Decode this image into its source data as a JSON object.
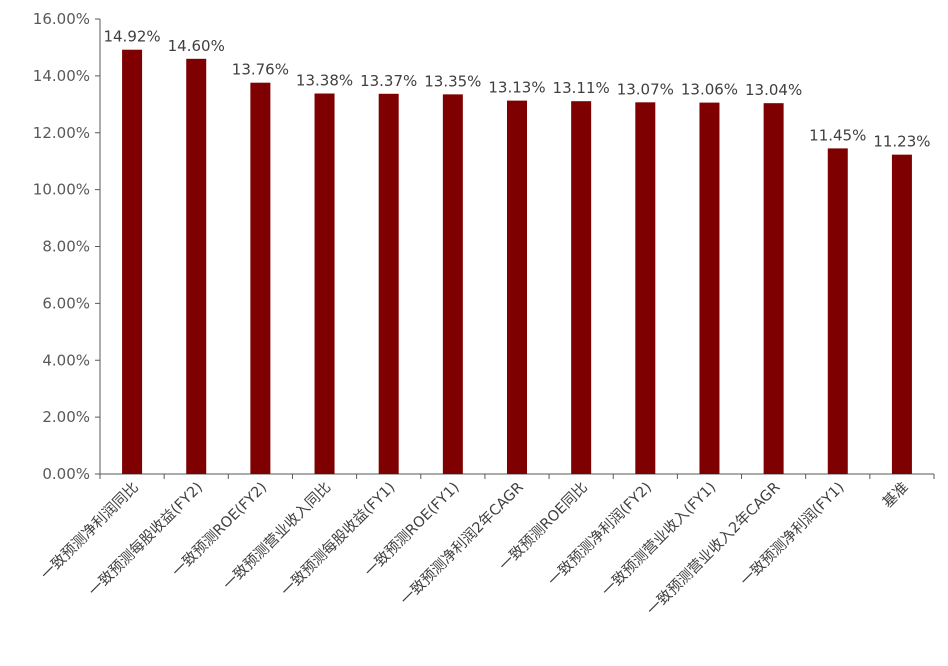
{
  "chart_data": {
    "type": "bar",
    "categories": [
      "一致预测净利润同比",
      "一致预测每股收益(FY2)",
      "一致预测ROE(FY2)",
      "一致预测营业收入同比",
      "一致预测每股收益(FY1)",
      "一致预测ROE(FY1)",
      "一致预测净利润2年CAGR",
      "一致预测ROE同比",
      "一致预测净利润(FY2)",
      "一致预测营业收入(FY1)",
      "一致预测营业收入2年CAGR",
      "一致预测净利润(FY1)",
      "基准"
    ],
    "values": [
      14.92,
      14.6,
      13.76,
      13.38,
      13.37,
      13.35,
      13.13,
      13.11,
      13.07,
      13.06,
      13.04,
      11.45,
      11.23
    ],
    "value_labels": [
      "14.92%",
      "14.60%",
      "13.76%",
      "13.38%",
      "13.37%",
      "13.35%",
      "13.13%",
      "13.11%",
      "13.07%",
      "13.06%",
      "13.04%",
      "11.45%",
      "11.23%"
    ],
    "ylim": [
      0,
      16
    ],
    "y_ticks": [
      0,
      2,
      4,
      6,
      8,
      10,
      12,
      14,
      16
    ],
    "y_tick_labels": [
      "0.00%",
      "2.00%",
      "4.00%",
      "6.00%",
      "8.00%",
      "10.00%",
      "12.00%",
      "14.00%",
      "16.00%"
    ],
    "title": "",
    "xlabel": "",
    "ylabel": "",
    "grid": false,
    "legend": "none",
    "bar_color": "#7F0000",
    "axis_color": "#595959"
  }
}
